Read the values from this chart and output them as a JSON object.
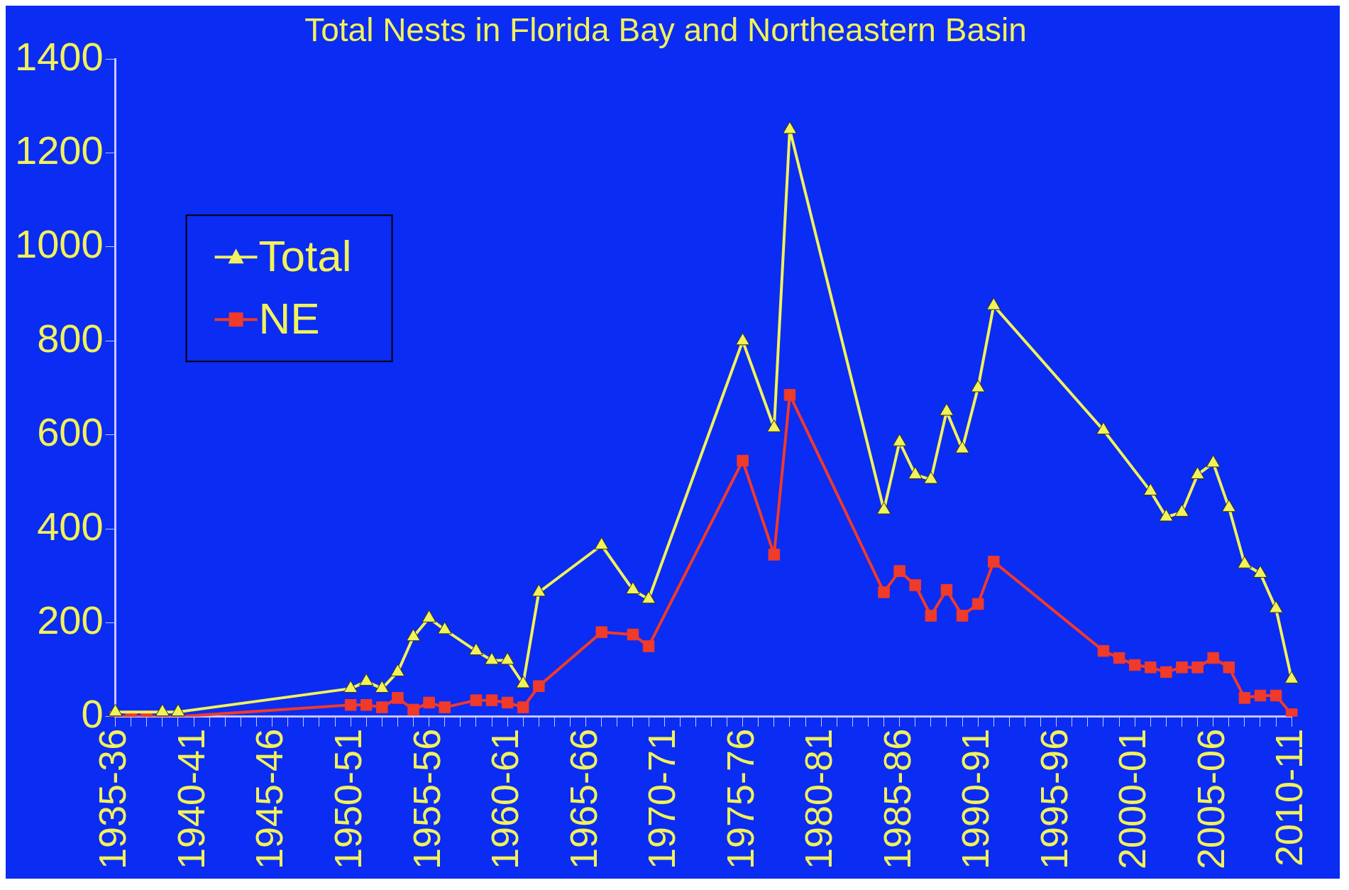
{
  "chart_data": {
    "type": "line",
    "title": "Total Nests in Florida Bay and Northeastern Basin",
    "categories": [
      "1935-36",
      null,
      null,
      null,
      null,
      "1940-41",
      null,
      null,
      null,
      null,
      "1945-46",
      null,
      null,
      null,
      null,
      "1950-51",
      null,
      null,
      null,
      null,
      "1955-56",
      null,
      null,
      null,
      null,
      "1960-61",
      null,
      null,
      null,
      null,
      "1965-66",
      null,
      null,
      null,
      null,
      "1970-71",
      null,
      null,
      null,
      null,
      "1975-76",
      null,
      null,
      null,
      null,
      "1980-81",
      null,
      null,
      null,
      null,
      "1985-86",
      null,
      null,
      null,
      null,
      "1990-91",
      null,
      null,
      null,
      null,
      "1995-96",
      null,
      null,
      null,
      null,
      "2000-01",
      null,
      null,
      null,
      null,
      "2005-06",
      null,
      null,
      null,
      null,
      "2010-11"
    ],
    "series": [
      {
        "name": "Total",
        "color": "#f2f25a",
        "marker": "triangle",
        "values": [
          10,
          null,
          null,
          10,
          10,
          null,
          null,
          null,
          null,
          null,
          null,
          null,
          null,
          null,
          null,
          60,
          75,
          60,
          95,
          170,
          210,
          185,
          null,
          140,
          120,
          120,
          70,
          265,
          null,
          null,
          null,
          365,
          null,
          270,
          250,
          null,
          null,
          null,
          null,
          null,
          800,
          null,
          615,
          1250,
          null,
          null,
          null,
          null,
          null,
          440,
          585,
          515,
          505,
          650,
          570,
          700,
          875,
          null,
          null,
          null,
          null,
          null,
          null,
          610,
          null,
          null,
          480,
          425,
          435,
          515,
          540,
          445,
          325,
          305,
          230,
          80
        ]
      },
      {
        "name": "NE",
        "color": "#f03a2a",
        "marker": "square",
        "values": [
          0,
          0,
          0,
          0,
          0,
          null,
          null,
          null,
          null,
          null,
          null,
          null,
          null,
          null,
          null,
          25,
          25,
          20,
          40,
          15,
          30,
          20,
          null,
          35,
          35,
          30,
          20,
          65,
          null,
          null,
          null,
          180,
          null,
          175,
          150,
          null,
          null,
          null,
          null,
          null,
          545,
          null,
          345,
          685,
          null,
          null,
          null,
          null,
          null,
          265,
          310,
          280,
          215,
          270,
          215,
          240,
          330,
          null,
          null,
          null,
          null,
          null,
          null,
          140,
          125,
          110,
          105,
          95,
          105,
          105,
          125,
          105,
          40,
          45,
          45,
          5
        ]
      }
    ],
    "ylim": [
      0,
      1400
    ],
    "yticks": [
      0,
      200,
      400,
      600,
      800,
      1000,
      1200,
      1400
    ],
    "grid": false,
    "legend": "top left"
  }
}
